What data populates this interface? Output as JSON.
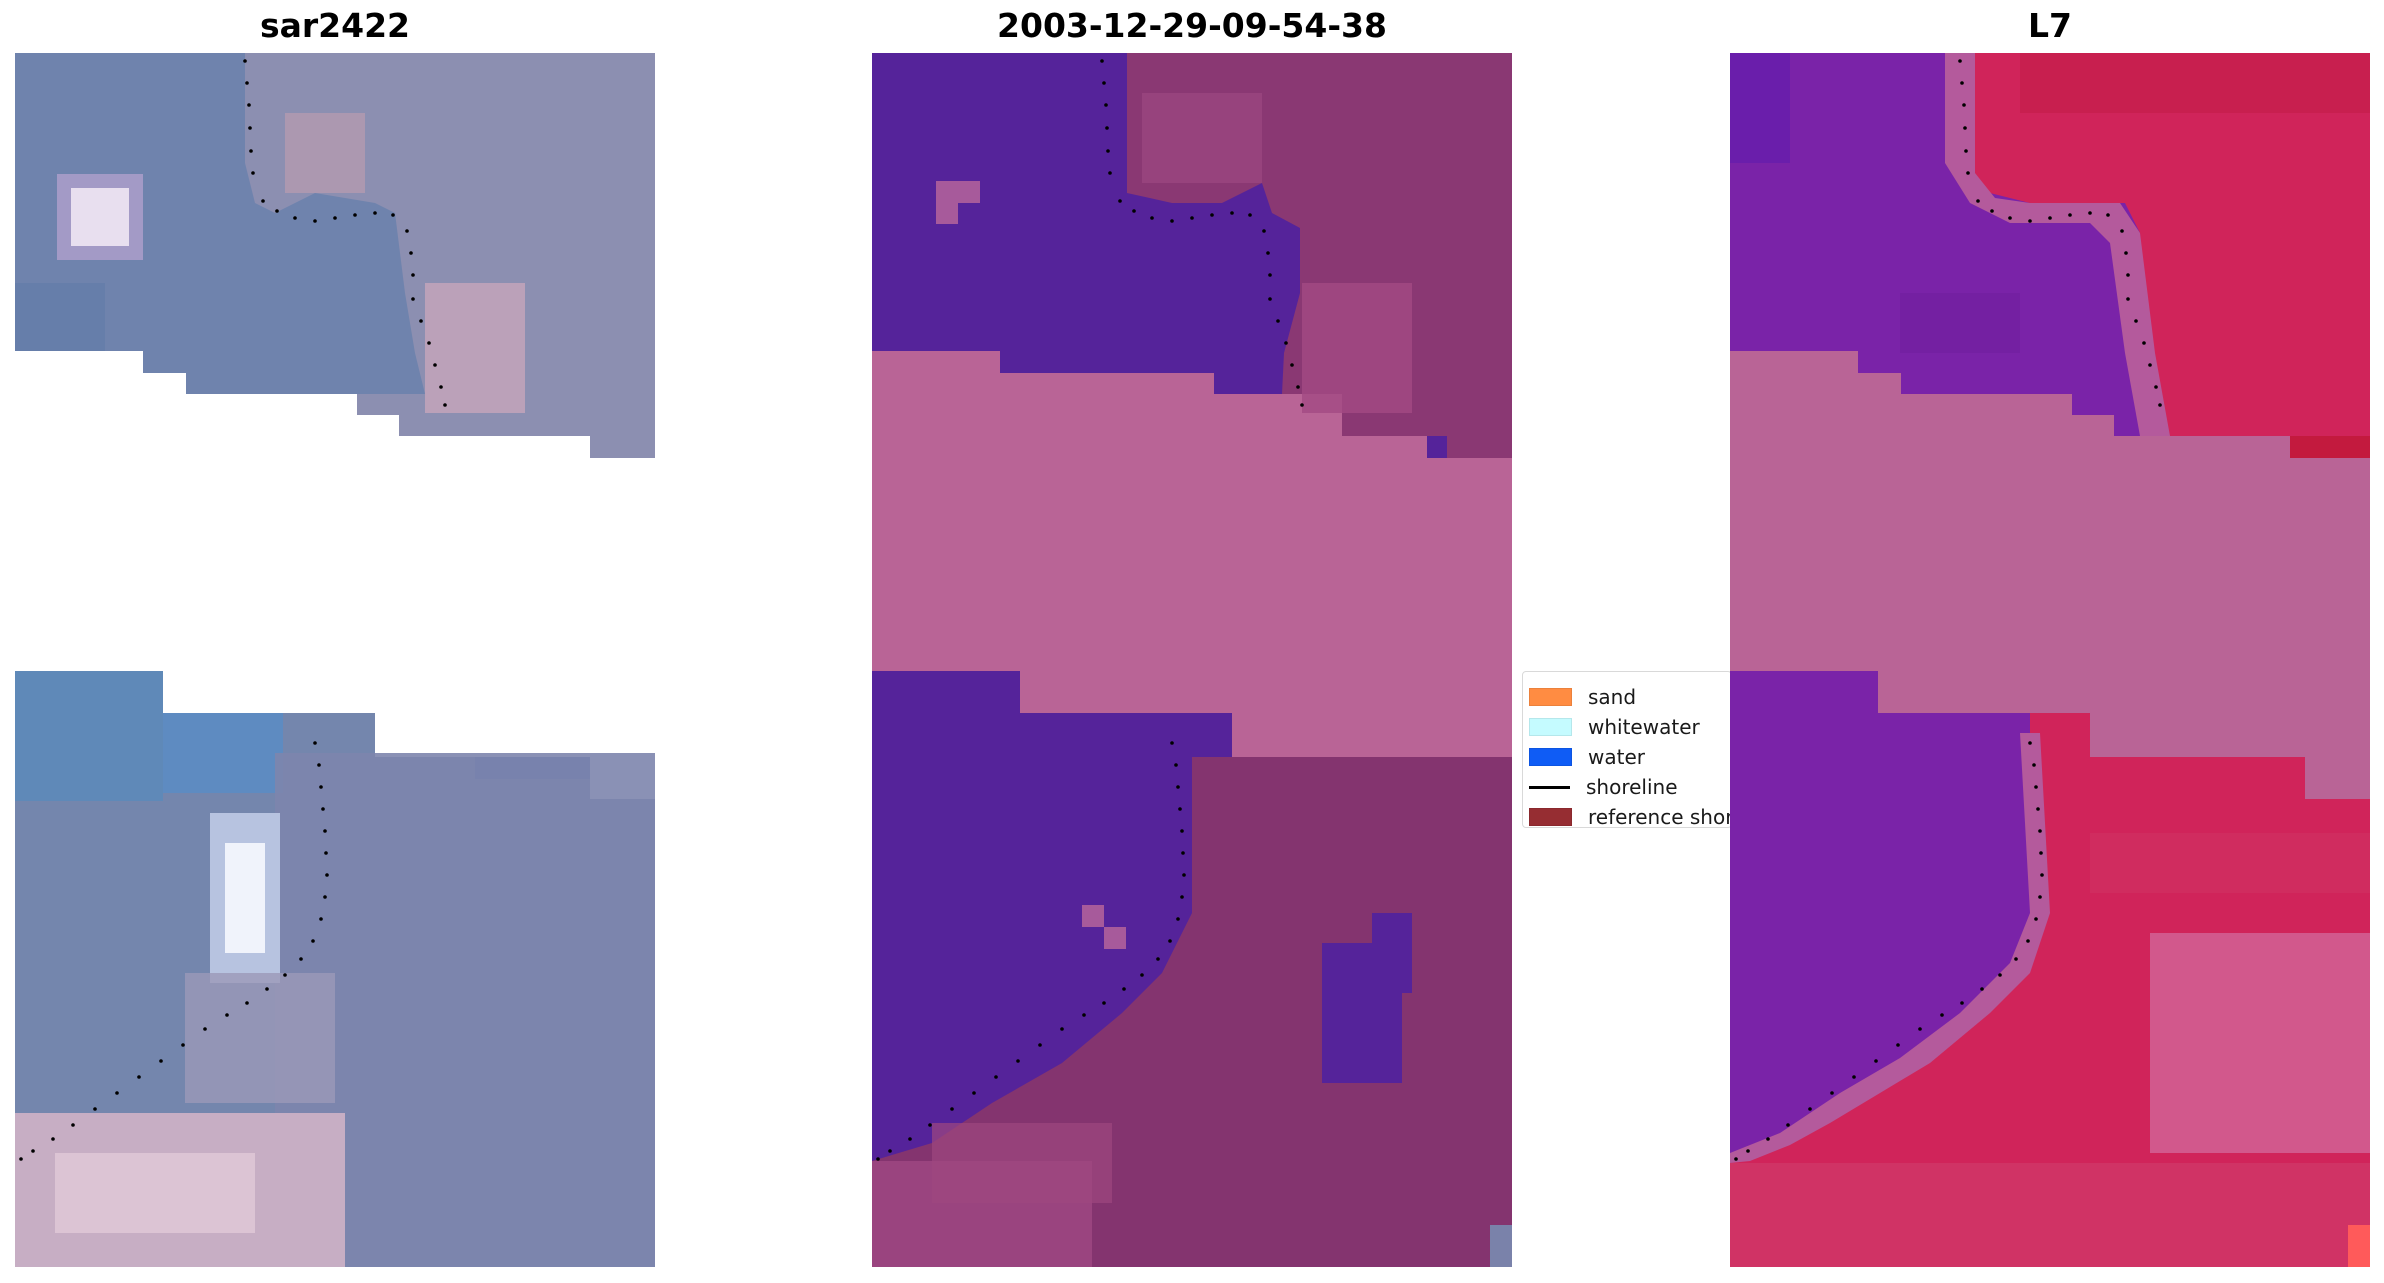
{
  "panels": [
    {
      "title": "sar2422",
      "kind": "rgb"
    },
    {
      "title": "2003-12-29-09-54-38",
      "kind": "classified"
    },
    {
      "title": "L7",
      "kind": "index"
    }
  ],
  "legend": {
    "items": [
      {
        "label": "sand",
        "color": "#ff8c42",
        "type": "patch"
      },
      {
        "label": "whitewater",
        "color": "#c5fbff",
        "type": "patch"
      },
      {
        "label": "water",
        "color": "#0f5cf5",
        "type": "patch"
      },
      {
        "label": "shoreline",
        "color": "#000000",
        "type": "line"
      },
      {
        "label": "reference shoreline",
        "color": "#962d32",
        "type": "patch"
      }
    ]
  },
  "colors": {
    "nodata_band": "#b96496",
    "water_class": "#55239a",
    "land_overlay": "#8a3873",
    "rgb_base": "#7482a8",
    "index_water": "#7a23a8",
    "index_land": "#d0245a"
  }
}
